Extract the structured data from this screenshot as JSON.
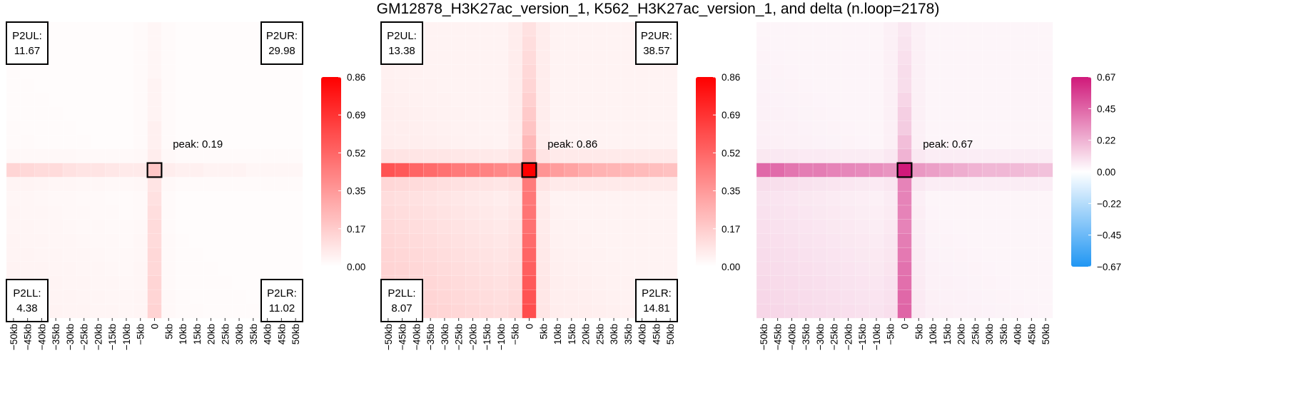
{
  "title": "GM12878_H3K27ac_version_1, K562_H3K27ac_version_1, and delta (n.loop=2178)",
  "x_tick_labels": [
    "−50kb",
    "−45kb",
    "−40kb",
    "−35kb",
    "−30kb",
    "−25kb",
    "−20kb",
    "−15kb",
    "−10kb",
    "−5kb",
    "0",
    "5kb",
    "10kb",
    "15kb",
    "20kb",
    "25kb",
    "30kb",
    "35kb",
    "40kb",
    "45kb",
    "50kb"
  ],
  "chart_data": [
    {
      "type": "heatmap",
      "name": "GM12878_H3K27ac_version_1",
      "grid_size": 21,
      "center_index": 10,
      "color_scale": {
        "min": 0.0,
        "max": 0.86,
        "low_color": "#ffffff",
        "high_color": "#ff0000",
        "ticks": [
          "0.86",
          "0.69",
          "0.52",
          "0.35",
          "0.17",
          "0.00"
        ]
      },
      "peak_value": 0.19,
      "peak_label": "peak: 0.19",
      "center_row_values": [
        0.14,
        0.13,
        0.12,
        0.12,
        0.1,
        0.09,
        0.09,
        0.08,
        0.07,
        0.07,
        0.19,
        0.06,
        0.05,
        0.05,
        0.04,
        0.04,
        0.04,
        0.03,
        0.03,
        0.03,
        0.03
      ],
      "center_col_top_values": [
        0.03,
        0.03,
        0.03,
        0.03,
        0.04,
        0.04,
        0.04,
        0.05,
        0.05,
        0.06
      ],
      "center_col_bottom_values": [
        0.09,
        0.1,
        0.11,
        0.12,
        0.12,
        0.13,
        0.13,
        0.14,
        0.14,
        0.15
      ],
      "background": {
        "base": 0.01,
        "lower_left_max": 0.05
      },
      "corners": {
        "upper_left": {
          "label": "P2UL:",
          "value": "11.67"
        },
        "upper_right": {
          "label": "P2UR:",
          "value": "29.98"
        },
        "lower_left": {
          "label": "P2LL:",
          "value": "4.38"
        },
        "lower_right": {
          "label": "P2LR:",
          "value": "11.02"
        }
      }
    },
    {
      "type": "heatmap",
      "name": "K562_H3K27ac_version_1",
      "grid_size": 21,
      "center_index": 10,
      "color_scale": {
        "min": 0.0,
        "max": 0.86,
        "low_color": "#ffffff",
        "high_color": "#ff0000",
        "ticks": [
          "0.86",
          "0.69",
          "0.52",
          "0.35",
          "0.17",
          "0.00"
        ]
      },
      "peak_value": 0.86,
      "peak_label": "peak: 0.86",
      "center_row_values": [
        0.58,
        0.56,
        0.52,
        0.5,
        0.48,
        0.45,
        0.44,
        0.42,
        0.4,
        0.38,
        0.86,
        0.36,
        0.33,
        0.31,
        0.28,
        0.26,
        0.25,
        0.24,
        0.23,
        0.22,
        0.21
      ],
      "center_col_top_values": [
        0.1,
        0.11,
        0.12,
        0.13,
        0.14,
        0.16,
        0.18,
        0.2,
        0.24,
        0.28
      ],
      "center_col_bottom_values": [
        0.45,
        0.46,
        0.47,
        0.48,
        0.5,
        0.52,
        0.54,
        0.56,
        0.58,
        0.6
      ],
      "background": {
        "base": 0.04,
        "lower_left_max": 0.18
      },
      "corners": {
        "upper_left": {
          "label": "P2UL:",
          "value": "13.38"
        },
        "upper_right": {
          "label": "P2UR:",
          "value": "38.57"
        },
        "lower_left": {
          "label": "P2LL:",
          "value": "8.07"
        },
        "lower_right": {
          "label": "P2LR:",
          "value": "14.81"
        }
      }
    },
    {
      "type": "heatmap",
      "name": "delta",
      "grid_size": 21,
      "center_index": 10,
      "color_scale": {
        "min": -0.67,
        "max": 0.67,
        "low_color": "#2196f3",
        "mid_color": "#ffffff",
        "high_color": "#d0197a",
        "ticks": [
          "0.67",
          "0.45",
          "0.22",
          "0.00",
          "−0.22",
          "−0.45",
          "−0.67"
        ]
      },
      "peak_value": 0.67,
      "peak_label": "peak: 0.67",
      "center_row_values": [
        0.44,
        0.43,
        0.4,
        0.38,
        0.38,
        0.36,
        0.35,
        0.34,
        0.33,
        0.31,
        0.67,
        0.3,
        0.28,
        0.26,
        0.24,
        0.22,
        0.21,
        0.21,
        0.2,
        0.19,
        0.18
      ],
      "center_col_top_values": [
        0.07,
        0.08,
        0.09,
        0.1,
        0.1,
        0.12,
        0.14,
        0.15,
        0.19,
        0.22
      ],
      "center_col_bottom_values": [
        0.36,
        0.36,
        0.36,
        0.36,
        0.38,
        0.39,
        0.41,
        0.42,
        0.44,
        0.45
      ],
      "background": {
        "base": 0.03,
        "lower_left_max": 0.13
      },
      "corners": null
    }
  ]
}
